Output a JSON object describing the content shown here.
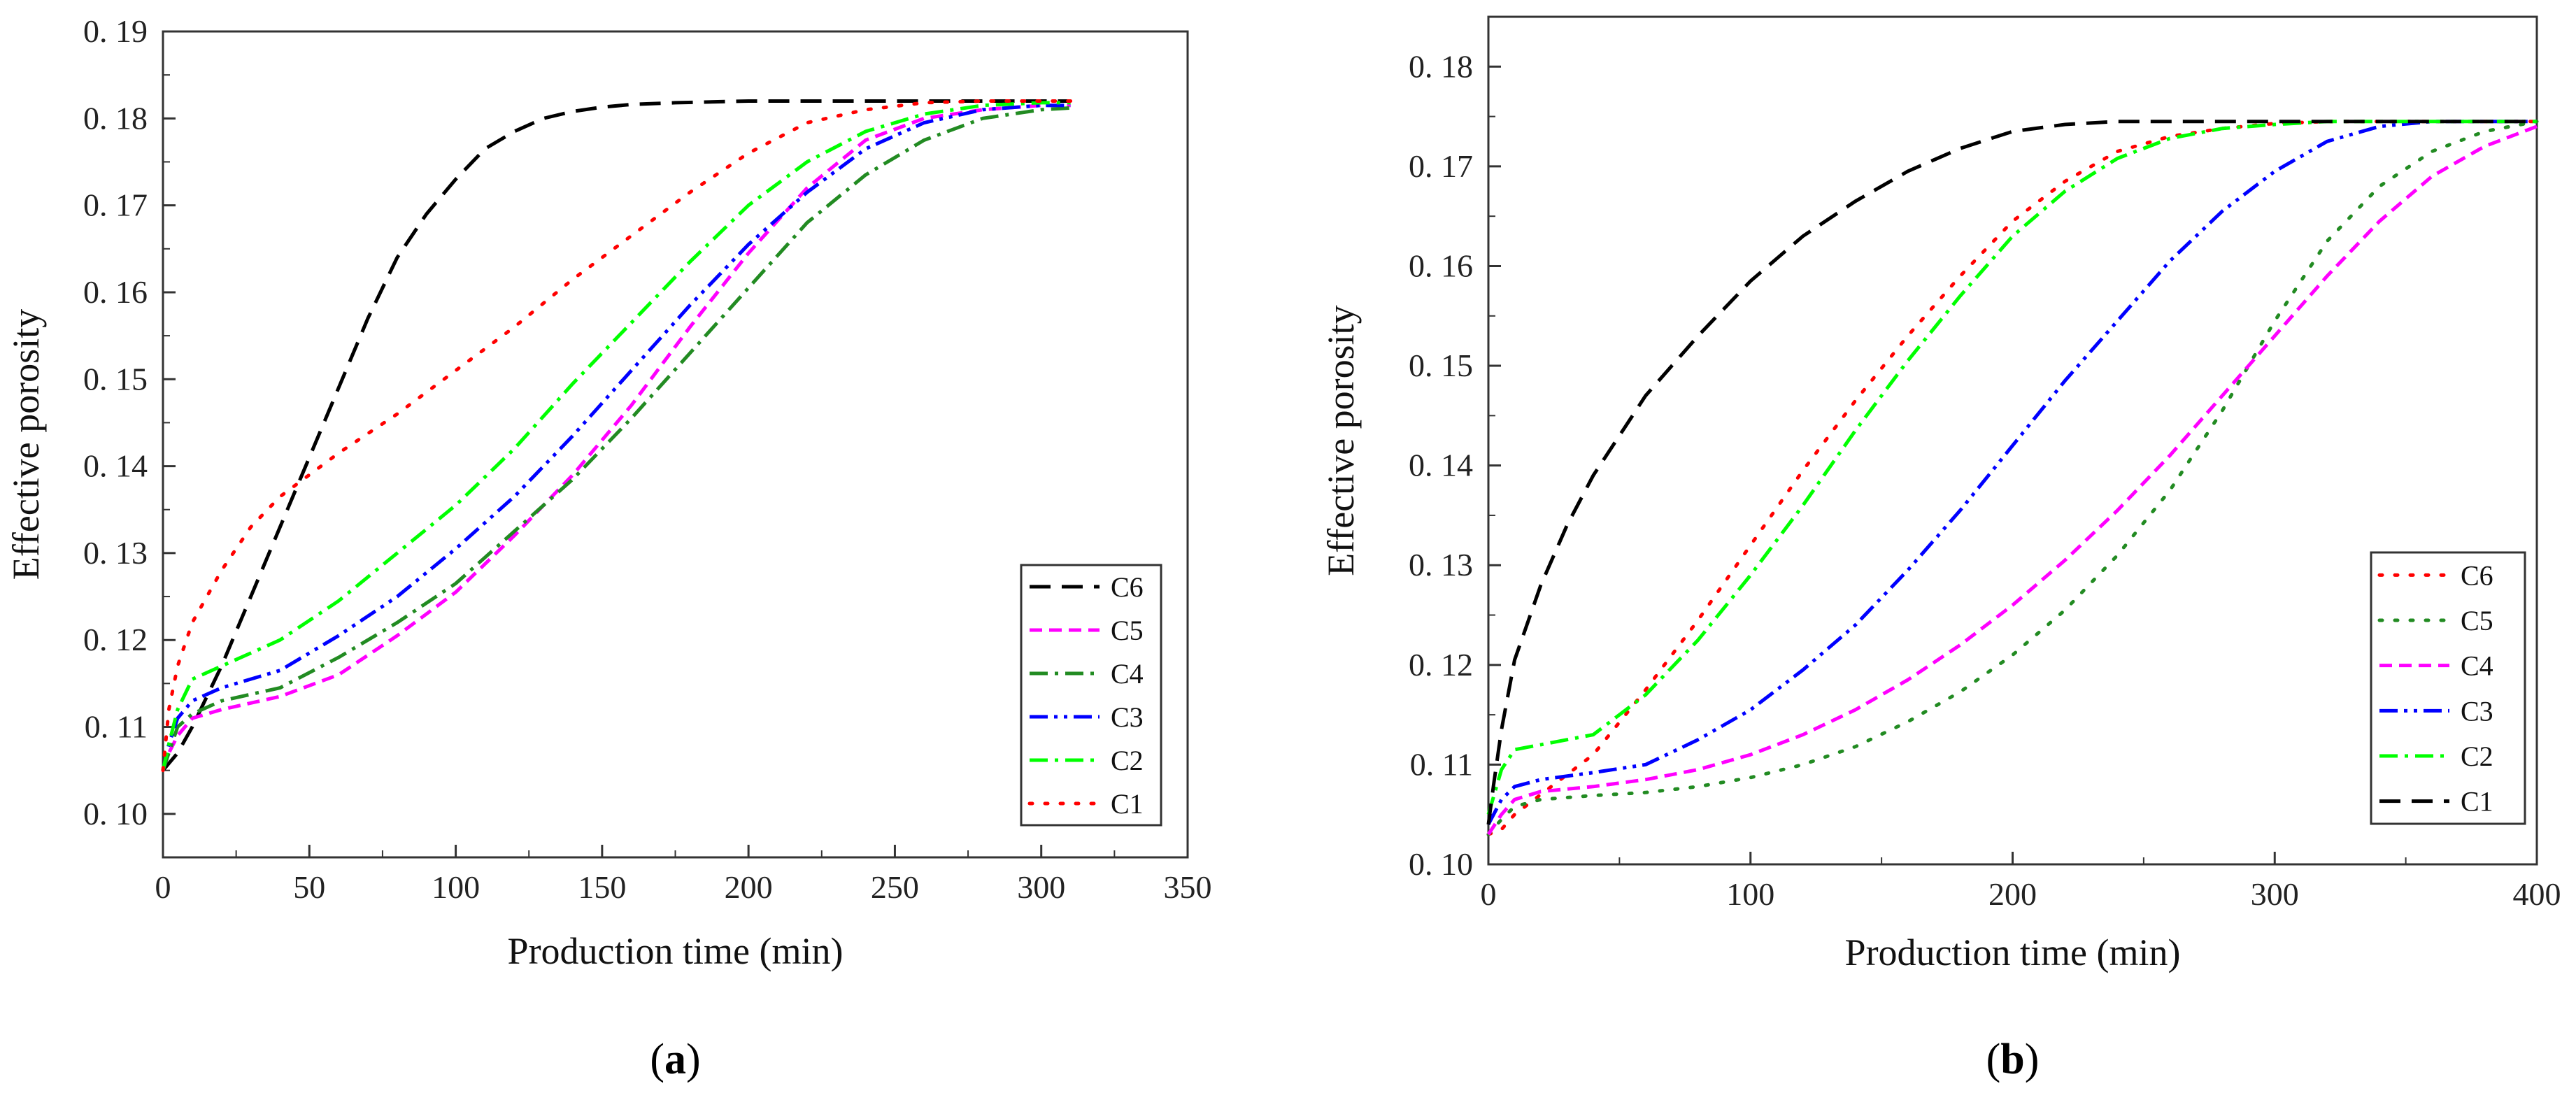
{
  "chart_data": [
    {
      "type": "line",
      "panel": "a",
      "panel_label": "a",
      "xlabel": "Production time (min)",
      "ylabel": "Effective porosity",
      "xlim": [
        0,
        350
      ],
      "ylim": [
        0.095,
        0.19
      ],
      "xticks": [
        0,
        50,
        100,
        150,
        200,
        250,
        300,
        350
      ],
      "xtick_labels": [
        "0",
        "50",
        "100",
        "150",
        "200",
        "250",
        "300",
        "350"
      ],
      "yticks": [
        0.1,
        0.11,
        0.12,
        0.13,
        0.14,
        0.15,
        0.16,
        0.17,
        0.18,
        0.19
      ],
      "ytick_labels": [
        "0. 10",
        "0. 11",
        "0. 12",
        "0. 13",
        "0. 14",
        "0. 15",
        "0. 16",
        "0. 17",
        "0. 18",
        "0. 19"
      ],
      "legend_position": "bottom-right",
      "series": [
        {
          "name": "C6",
          "color": "#000000",
          "dash": "long-dash",
          "x": [
            0,
            5,
            10,
            20,
            30,
            40,
            50,
            60,
            70,
            80,
            90,
            100,
            110,
            120,
            130,
            140,
            150,
            160,
            175,
            200,
            250,
            310
          ],
          "y": [
            0.105,
            0.107,
            0.11,
            0.117,
            0.125,
            0.133,
            0.141,
            0.149,
            0.157,
            0.164,
            0.169,
            0.173,
            0.1765,
            0.1785,
            0.18,
            0.1808,
            0.1813,
            0.1816,
            0.1818,
            0.182,
            0.182,
            0.182
          ]
        },
        {
          "name": "C5",
          "color": "#ff00ff",
          "dash": "dash",
          "x": [
            0,
            2,
            5,
            10,
            20,
            40,
            60,
            80,
            100,
            120,
            140,
            160,
            180,
            200,
            220,
            240,
            260,
            280,
            300,
            310
          ],
          "y": [
            0.105,
            0.107,
            0.109,
            0.111,
            0.112,
            0.1135,
            0.116,
            0.1205,
            0.1255,
            0.132,
            0.139,
            0.147,
            0.156,
            0.1645,
            0.172,
            0.1775,
            0.18,
            0.181,
            0.1815,
            0.1815
          ]
        },
        {
          "name": "C4",
          "color": "#228b22",
          "dash": "dash-dot",
          "x": [
            0,
            2,
            5,
            10,
            20,
            40,
            60,
            80,
            100,
            120,
            140,
            160,
            180,
            200,
            220,
            240,
            260,
            280,
            300,
            310
          ],
          "y": [
            0.105,
            0.107,
            0.11,
            0.1115,
            0.113,
            0.1145,
            0.118,
            0.122,
            0.1265,
            0.1325,
            0.1385,
            0.1455,
            0.153,
            0.1605,
            0.168,
            0.1735,
            0.1775,
            0.18,
            0.181,
            0.1812
          ]
        },
        {
          "name": "C3",
          "color": "#0000ff",
          "dash": "dash-dot-dot",
          "x": [
            0,
            2,
            5,
            10,
            20,
            40,
            60,
            80,
            100,
            120,
            140,
            160,
            180,
            200,
            220,
            240,
            260,
            280,
            300,
            310
          ],
          "y": [
            0.105,
            0.108,
            0.111,
            0.113,
            0.1145,
            0.1165,
            0.1205,
            0.125,
            0.1305,
            0.1365,
            0.1435,
            0.151,
            0.1585,
            0.1655,
            0.1715,
            0.1765,
            0.1795,
            0.181,
            0.1815,
            0.1815
          ]
        },
        {
          "name": "C2",
          "color": "#00ff00",
          "dash": "dash-dot",
          "x": [
            0,
            2,
            5,
            10,
            20,
            40,
            60,
            80,
            100,
            120,
            140,
            160,
            180,
            200,
            220,
            240,
            260,
            280,
            300,
            310
          ],
          "y": [
            0.105,
            0.108,
            0.112,
            0.1155,
            0.117,
            0.12,
            0.1245,
            0.13,
            0.1355,
            0.142,
            0.1495,
            0.1565,
            0.1635,
            0.17,
            0.175,
            0.1785,
            0.1805,
            0.1815,
            0.1818,
            0.1818
          ]
        },
        {
          "name": "C1",
          "color": "#ff0000",
          "dash": "dotted",
          "x": [
            0,
            2,
            5,
            10,
            20,
            30,
            40,
            50,
            60,
            80,
            100,
            120,
            140,
            160,
            180,
            200,
            220,
            240,
            260,
            280,
            300,
            310
          ],
          "y": [
            0.105,
            0.112,
            0.117,
            0.122,
            0.128,
            0.133,
            0.1365,
            0.139,
            0.1415,
            0.146,
            0.151,
            0.156,
            0.1615,
            0.1665,
            0.1715,
            0.176,
            0.1795,
            0.181,
            0.1818,
            0.182,
            0.182,
            0.182
          ]
        }
      ]
    },
    {
      "type": "line",
      "panel": "b",
      "panel_label": "b",
      "xlabel": "Production time (min)",
      "ylabel": "Effective porosity",
      "xlim": [
        0,
        400
      ],
      "ylim": [
        0.1,
        0.185
      ],
      "xticks": [
        0,
        100,
        200,
        300,
        400
      ],
      "xtick_labels": [
        "0",
        "100",
        "200",
        "300",
        "400"
      ],
      "yticks": [
        0.1,
        0.11,
        0.12,
        0.13,
        0.14,
        0.15,
        0.16,
        0.17,
        0.18
      ],
      "ytick_labels": [
        "0. 10",
        "0. 11",
        "0. 12",
        "0. 13",
        "0. 14",
        "0. 15",
        "0. 16",
        "0. 17",
        "0. 18"
      ],
      "legend_position": "bottom-right",
      "series": [
        {
          "name": "C6",
          "color": "#ff0000",
          "dash": "dotted",
          "x": [
            0,
            5,
            10,
            20,
            40,
            60,
            80,
            100,
            120,
            140,
            160,
            180,
            200,
            220,
            240,
            260,
            280,
            300,
            320,
            350,
            400
          ],
          "y": [
            0.103,
            0.1035,
            0.105,
            0.107,
            0.111,
            0.1175,
            0.1245,
            0.132,
            0.1395,
            0.1465,
            0.153,
            0.159,
            0.1645,
            0.1685,
            0.1715,
            0.173,
            0.1738,
            0.1743,
            0.1745,
            0.1745,
            0.1745
          ]
        },
        {
          "name": "C5",
          "color": "#228b22",
          "dash": "dotted",
          "x": [
            0,
            5,
            10,
            20,
            40,
            60,
            80,
            100,
            120,
            140,
            160,
            180,
            200,
            220,
            240,
            260,
            280,
            300,
            320,
            340,
            360,
            380,
            400
          ],
          "y": [
            0.103,
            0.1045,
            0.1058,
            0.1065,
            0.1069,
            0.1072,
            0.1078,
            0.1087,
            0.11,
            0.1118,
            0.1143,
            0.1173,
            0.121,
            0.1255,
            0.131,
            0.1375,
            0.1455,
            0.1545,
            0.1625,
            0.168,
            0.1715,
            0.1735,
            0.1745
          ]
        },
        {
          "name": "C4",
          "color": "#ff00ff",
          "dash": "dash",
          "x": [
            0,
            5,
            10,
            20,
            40,
            60,
            80,
            100,
            120,
            140,
            160,
            180,
            200,
            220,
            240,
            260,
            280,
            300,
            320,
            340,
            360,
            380,
            400
          ],
          "y": [
            0.103,
            0.105,
            0.1065,
            0.1073,
            0.1078,
            0.1085,
            0.1095,
            0.111,
            0.113,
            0.1155,
            0.1185,
            0.122,
            0.126,
            0.1305,
            0.1355,
            0.141,
            0.147,
            0.153,
            0.159,
            0.1645,
            0.169,
            0.172,
            0.174
          ]
        },
        {
          "name": "C3",
          "color": "#0000ff",
          "dash": "dash-dot-dot",
          "x": [
            0,
            5,
            10,
            20,
            40,
            60,
            80,
            100,
            120,
            140,
            160,
            180,
            200,
            220,
            240,
            260,
            280,
            300,
            320,
            340,
            360,
            380,
            400
          ],
          "y": [
            0.104,
            0.1065,
            0.1078,
            0.1085,
            0.1092,
            0.11,
            0.1125,
            0.1155,
            0.1195,
            0.124,
            0.1295,
            0.1355,
            0.142,
            0.1485,
            0.1545,
            0.1605,
            0.1655,
            0.1695,
            0.1725,
            0.174,
            0.1745,
            0.1745,
            0.1745
          ]
        },
        {
          "name": "C2",
          "color": "#00ff00",
          "dash": "dash-dot",
          "x": [
            0,
            5,
            10,
            20,
            40,
            60,
            80,
            100,
            120,
            140,
            160,
            180,
            200,
            220,
            240,
            260,
            280,
            300,
            320,
            350,
            400
          ],
          "y": [
            0.105,
            0.1095,
            0.1115,
            0.112,
            0.113,
            0.117,
            0.1225,
            0.129,
            0.136,
            0.1435,
            0.1505,
            0.157,
            0.163,
            0.1675,
            0.1708,
            0.1728,
            0.1738,
            0.1742,
            0.1745,
            0.1745,
            0.1745
          ]
        },
        {
          "name": "C1",
          "color": "#000000",
          "dash": "long-dash",
          "x": [
            0,
            2,
            5,
            10,
            20,
            30,
            40,
            50,
            60,
            80,
            100,
            120,
            140,
            160,
            180,
            200,
            220,
            240,
            260,
            300,
            350,
            400
          ],
          "y": [
            0.104,
            0.108,
            0.1135,
            0.1205,
            0.128,
            0.134,
            0.139,
            0.143,
            0.147,
            0.153,
            0.1585,
            0.163,
            0.1665,
            0.1695,
            0.1718,
            0.1735,
            0.1742,
            0.1745,
            0.1745,
            0.1745,
            0.1745,
            0.1745
          ]
        }
      ]
    }
  ]
}
